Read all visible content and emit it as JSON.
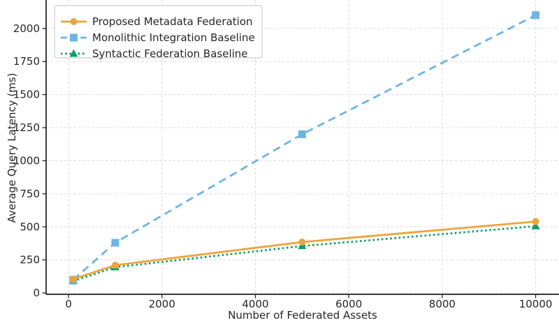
{
  "chart_data": {
    "type": "line",
    "title": "",
    "xlabel": "Number of Federated Assets",
    "ylabel": "Average Query Latency (ms)",
    "x": [
      100,
      1000,
      5000,
      10000
    ],
    "series": [
      {
        "name": "Syntactic Federation Baseline",
        "values": [
          90,
          195,
          355,
          505
        ],
        "color": "#0e9f66",
        "line_style": "dotted",
        "marker": "triangle"
      },
      {
        "name": "Monolithic Integration Baseline",
        "values": [
          100,
          380,
          1200,
          2100
        ],
        "color": "#6db4e4",
        "line_style": "dashed",
        "marker": "square"
      },
      {
        "name": "Proposed Metadata Federation",
        "values": [
          105,
          210,
          385,
          540
        ],
        "color": "#eea43c",
        "line_style": "solid",
        "marker": "circle"
      }
    ],
    "legend_order": [
      2,
      1,
      0
    ],
    "x_ticks": [
      0,
      2000,
      4000,
      6000,
      8000,
      10000
    ],
    "y_ticks": [
      0,
      250,
      500,
      750,
      1000,
      1250,
      1500,
      1750,
      2000
    ],
    "xlim": [
      -480,
      10500
    ],
    "ylim": [
      -10,
      2215
    ],
    "grid": true,
    "legend_position": "upper left",
    "colors": {
      "grid": "#d8d8d8",
      "spine": "#1f1f1f",
      "tick": "#262626",
      "text": "#262626",
      "legend_border": "#cccccc",
      "background": "#ffffff"
    }
  }
}
